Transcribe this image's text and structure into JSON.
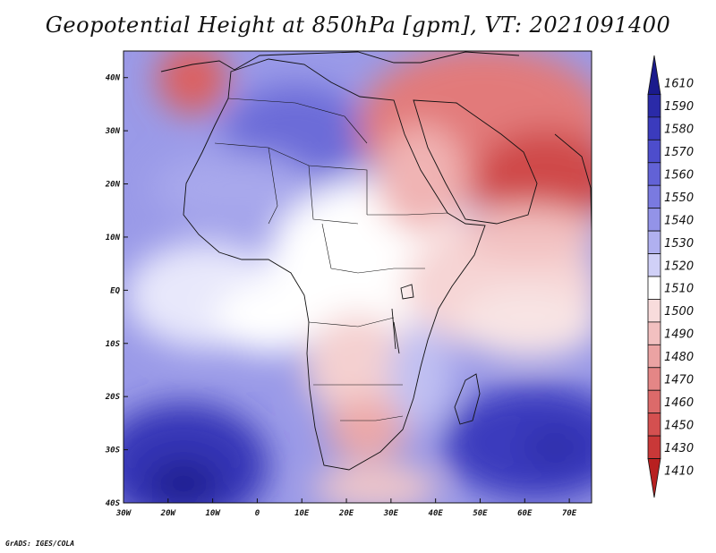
{
  "title": "Geopotential Height at 850hPa [gpm], VT: 2021091400",
  "credit": "GrADS: IGES/COLA",
  "map": {
    "projection": "lat-lon",
    "lon_range": [
      -30,
      75
    ],
    "lat_range": [
      -40,
      45
    ],
    "x_ticks": [
      {
        "value": -30,
        "label": "30W"
      },
      {
        "value": -20,
        "label": "20W"
      },
      {
        "value": -10,
        "label": "10W"
      },
      {
        "value": 0,
        "label": "0"
      },
      {
        "value": 10,
        "label": "10E"
      },
      {
        "value": 20,
        "label": "20E"
      },
      {
        "value": 30,
        "label": "30E"
      },
      {
        "value": 40,
        "label": "40E"
      },
      {
        "value": 50,
        "label": "50E"
      },
      {
        "value": 60,
        "label": "60E"
      },
      {
        "value": 70,
        "label": "70E"
      }
    ],
    "y_ticks": [
      {
        "value": 40,
        "label": "40N"
      },
      {
        "value": 30,
        "label": "30N"
      },
      {
        "value": 20,
        "label": "20N"
      },
      {
        "value": 10,
        "label": "10N"
      },
      {
        "value": 0,
        "label": "EQ"
      },
      {
        "value": -10,
        "label": "10S"
      },
      {
        "value": -20,
        "label": "20S"
      },
      {
        "value": -30,
        "label": "30S"
      },
      {
        "value": -40,
        "label": "40S"
      }
    ]
  },
  "colorbar": {
    "labels": [
      "1610",
      "1590",
      "1580",
      "1570",
      "1560",
      "1550",
      "1540",
      "1530",
      "1520",
      "1510",
      "1500",
      "1490",
      "1480",
      "1470",
      "1460",
      "1450",
      "1430",
      "1410"
    ],
    "colors": [
      "#1a1a8c",
      "#2a2aa8",
      "#3b3bbd",
      "#4d4dcc",
      "#6262d6",
      "#7a7ae0",
      "#9393e8",
      "#b0b0f0",
      "#d0d0f7",
      "#ffffff",
      "#f8dcdc",
      "#f2c0c0",
      "#eba3a3",
      "#e48686",
      "#dc6a6a",
      "#d45050",
      "#c93838",
      "#b82020"
    ]
  },
  "fields": {
    "high_centers": [
      {
        "name": "south-atlantic-high",
        "lon": -16,
        "lat": -34,
        "level": 1610
      },
      {
        "name": "indian-ocean-high",
        "lon": 65,
        "lat": -28,
        "level": 1590
      },
      {
        "name": "sahara-high",
        "lon": 5,
        "lat": 30,
        "level": 1560
      }
    ],
    "low_centers": [
      {
        "name": "arabian-low",
        "lon": 65,
        "lat": 22,
        "level": 1450
      },
      {
        "name": "iberia-low",
        "lon": -15,
        "lat": 40,
        "level": 1460
      },
      {
        "name": "mideast-low",
        "lon": 45,
        "lat": 33,
        "level": 1470
      }
    ]
  }
}
